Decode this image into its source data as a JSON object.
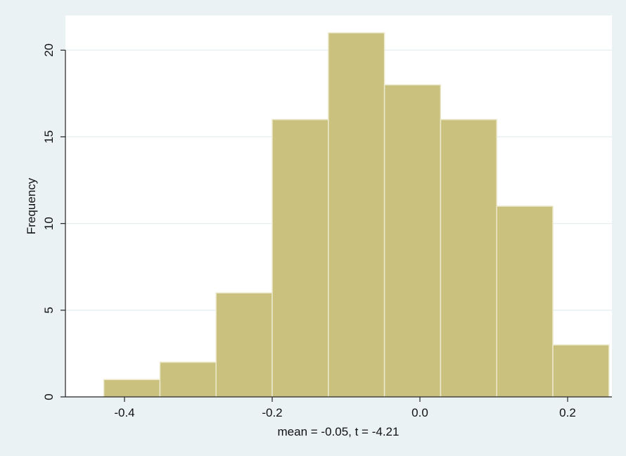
{
  "chart_data": {
    "type": "bar",
    "title": "",
    "xlabel": "mean = -0.05, t = -4.21",
    "ylabel": "Frequency",
    "bins": [
      {
        "x0": -0.428,
        "x1": -0.352,
        "value": 1
      },
      {
        "x0": -0.352,
        "x1": -0.276,
        "value": 2
      },
      {
        "x0": -0.276,
        "x1": -0.2,
        "value": 6
      },
      {
        "x0": -0.2,
        "x1": -0.124,
        "value": 16
      },
      {
        "x0": -0.124,
        "x1": -0.048,
        "value": 21
      },
      {
        "x0": -0.048,
        "x1": 0.028,
        "value": 18
      },
      {
        "x0": 0.028,
        "x1": 0.104,
        "value": 16
      },
      {
        "x0": 0.104,
        "x1": 0.18,
        "value": 11
      },
      {
        "x0": 0.18,
        "x1": 0.256,
        "value": 3
      }
    ],
    "xlim": [
      -0.48,
      0.26
    ],
    "ylim": [
      0,
      22
    ],
    "xticks": [
      -0.4,
      -0.2,
      0.0,
      0.2
    ],
    "xtick_labels": [
      "-0.4",
      "-0.2",
      "0.0",
      "0.2"
    ],
    "yticks": [
      0,
      5,
      10,
      15,
      20
    ],
    "ytick_labels": [
      "0",
      "5",
      "10",
      "15",
      "20"
    ],
    "grid": true,
    "colors": {
      "bar_fill": "#cbc17f",
      "bar_edge": "#ece9cc",
      "plot_background": "#ffffff",
      "page_background": "#eaf2f3",
      "gridline": "#e7eef0"
    }
  }
}
